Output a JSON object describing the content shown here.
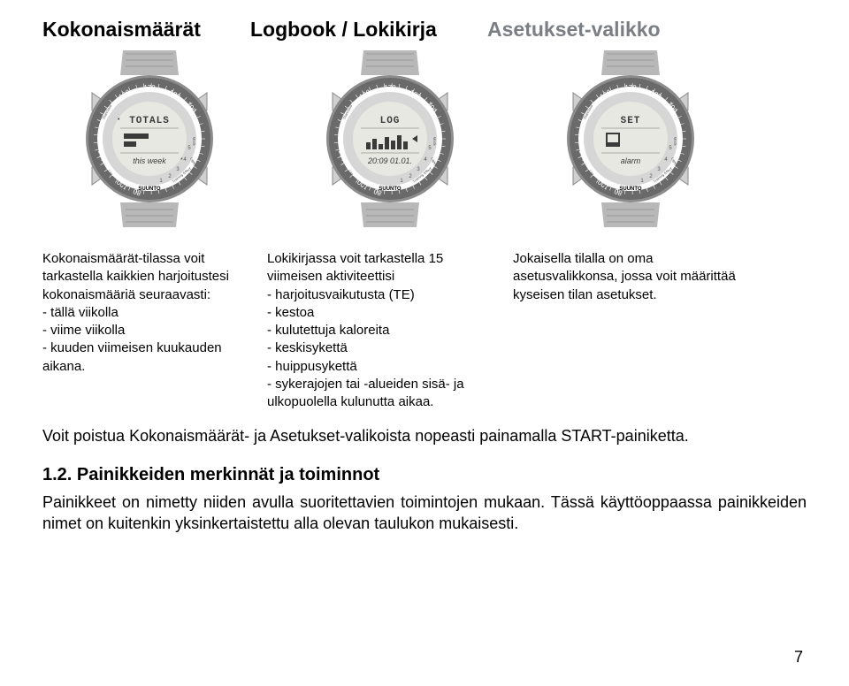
{
  "headings": {
    "col1": "Kokonaismäärät",
    "col2": "Logbook / Lokikirja",
    "col3": "Asetukset-valikko"
  },
  "watches": {
    "brand": "SUUNTO",
    "bezel_numbers_top": [
      "160",
      "170",
      "180"
    ],
    "bezel_left": [
      "150",
      "140",
      "130"
    ],
    "bezel_right": [
      "190"
    ],
    "bezel_bottom": [
      "100",
      "80"
    ],
    "te_numbers": [
      "1",
      "2",
      "3",
      "4",
      "5"
    ],
    "side_labels": {
      "top_left": "Start/Stop",
      "bottom_left": "Lap",
      "right": "Mode",
      "light": "Light"
    },
    "te_label": "Training Effect",
    "bezel_color": "#6a6a6a",
    "inner_ring_color": "#d6d6d6",
    "lcd_bg": "#e8e8e2",
    "band_color": "#b8b8b8",
    "body_color": "#8c8c8c",
    "lugs_color": "#d0d0d0",
    "displays": {
      "col1": {
        "line1": "TOTALS",
        "line3": "this week",
        "has_bar": true
      },
      "col2": {
        "line1": "LOG",
        "line3": "20:09 01.01.",
        "has_histogram": true
      },
      "col3": {
        "line1": "SET",
        "line3": "alarm",
        "has_cursor": true
      }
    }
  },
  "descriptions": {
    "col1": "Kokonaismäärät-tilassa voit tarkastella kaikkien harjoitustesi kokonais­määriä seuraavasti:\n- tällä viikolla\n- viime viikolla\n- kuuden viimeisen kuukauden aikana.",
    "col2": "Lokikirjassa voit tarkastella 15 viimeisen aktiviteettisi\n- harjoitusvaikutusta (TE)\n- kestoa\n- kulutettuja kaloreita\n- keskisykettä\n- huippusykettä\n- sykerajojen tai -alueiden sisä- ja ulkopuolella kulunutta aikaa.",
    "col3": "Jokaisella tilalla on oma asetusvalikkonsa, jossa voit määrittää kyseisen tilan asetukset."
  },
  "exit_note": "Voit poistua Kokonaismäärät- ja Asetukset-valikoista nopeasti painamalla START-painiketta.",
  "section": {
    "heading": "1.2. Painikkeiden merkinnät ja toiminnot",
    "body": "Painikkeet on nimetty niiden avulla suoritettavien toimintojen mukaan. Tässä käyttöoppaassa painikkeiden nimet on kuitenkin yksinkertaistettu alla olevan taulukon mukaisesti."
  },
  "page_number": "7"
}
